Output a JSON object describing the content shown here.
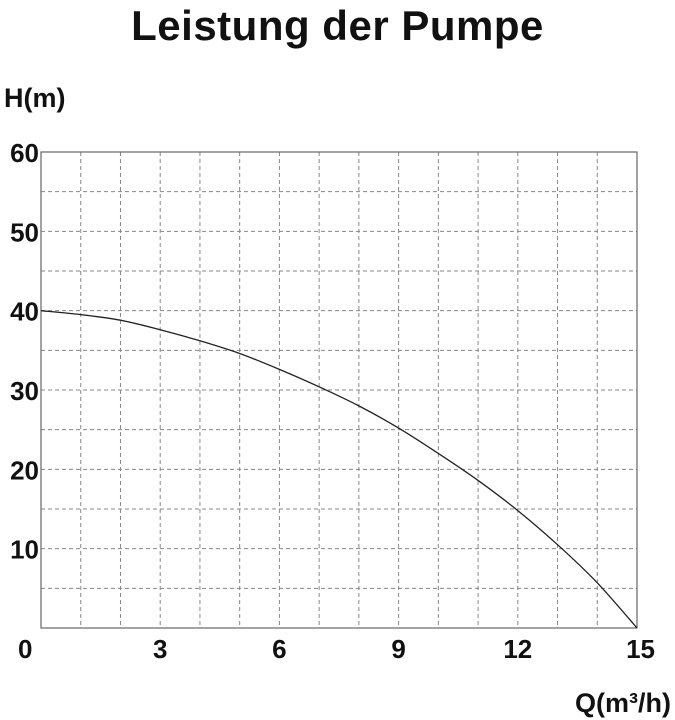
{
  "chart_data": {
    "type": "line",
    "title": "Leistung der Pumpe",
    "xlabel": "Q(m³/h)",
    "ylabel": "H(m)",
    "xlim": [
      0,
      15
    ],
    "ylim": [
      0,
      60
    ],
    "x_ticks": [
      0,
      3,
      6,
      9,
      12,
      15
    ],
    "y_ticks": [
      10,
      20,
      30,
      40,
      50,
      60
    ],
    "grid": true,
    "series": [
      {
        "x": [
          0,
          1,
          2,
          3,
          4,
          5,
          6,
          7,
          8,
          9,
          10,
          11,
          12,
          13,
          14,
          15
        ],
        "values": [
          40,
          39.5,
          38.8,
          37.6,
          36.2,
          34.6,
          32.6,
          30.4,
          28.0,
          25.2,
          22.0,
          18.6,
          14.8,
          10.5,
          5.7,
          0
        ]
      }
    ]
  }
}
